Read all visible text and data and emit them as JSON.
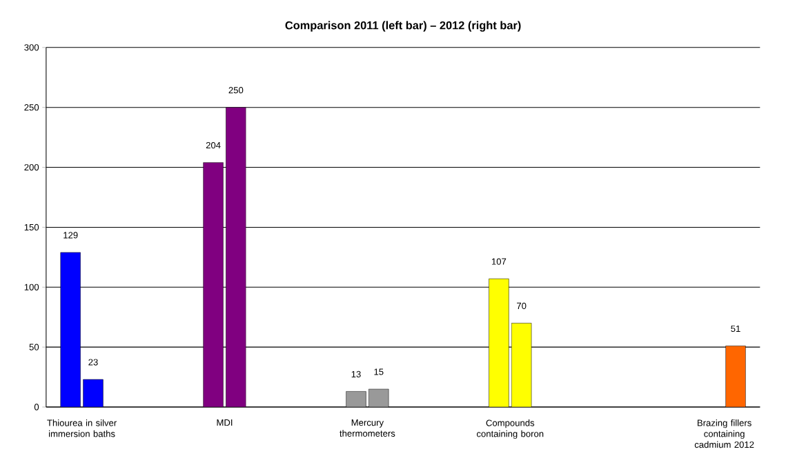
{
  "chart_data": {
    "type": "bar",
    "title": "Comparison 2011 (left bar) – 2012 (right bar)",
    "categories": [
      "Thiourea in silver immersion baths",
      null,
      "MDI",
      null,
      "Mercury thermometers",
      null,
      "Compounds containing boron",
      null,
      null,
      "Brazing fillers containing cadmium 2012"
    ],
    "series": [
      {
        "values": [
          129,
          null,
          204,
          null,
          13,
          null,
          107,
          null,
          null,
          null
        ],
        "colors": [
          "#0000ff",
          null,
          "#800080",
          null,
          "#999999",
          null,
          "#ffff00",
          null,
          null,
          null
        ]
      },
      {
        "values": [
          23,
          null,
          250,
          null,
          15,
          null,
          70,
          null,
          null,
          51
        ],
        "colors": [
          "#0000ff",
          null,
          "#800080",
          null,
          "#999999",
          null,
          "#ffff00",
          null,
          null,
          "#ff6600"
        ]
      }
    ],
    "ylim": [
      0,
      300
    ],
    "yticks": [
      0,
      50,
      100,
      150,
      200,
      250,
      300
    ],
    "grid": "y",
    "data_labels": true
  }
}
